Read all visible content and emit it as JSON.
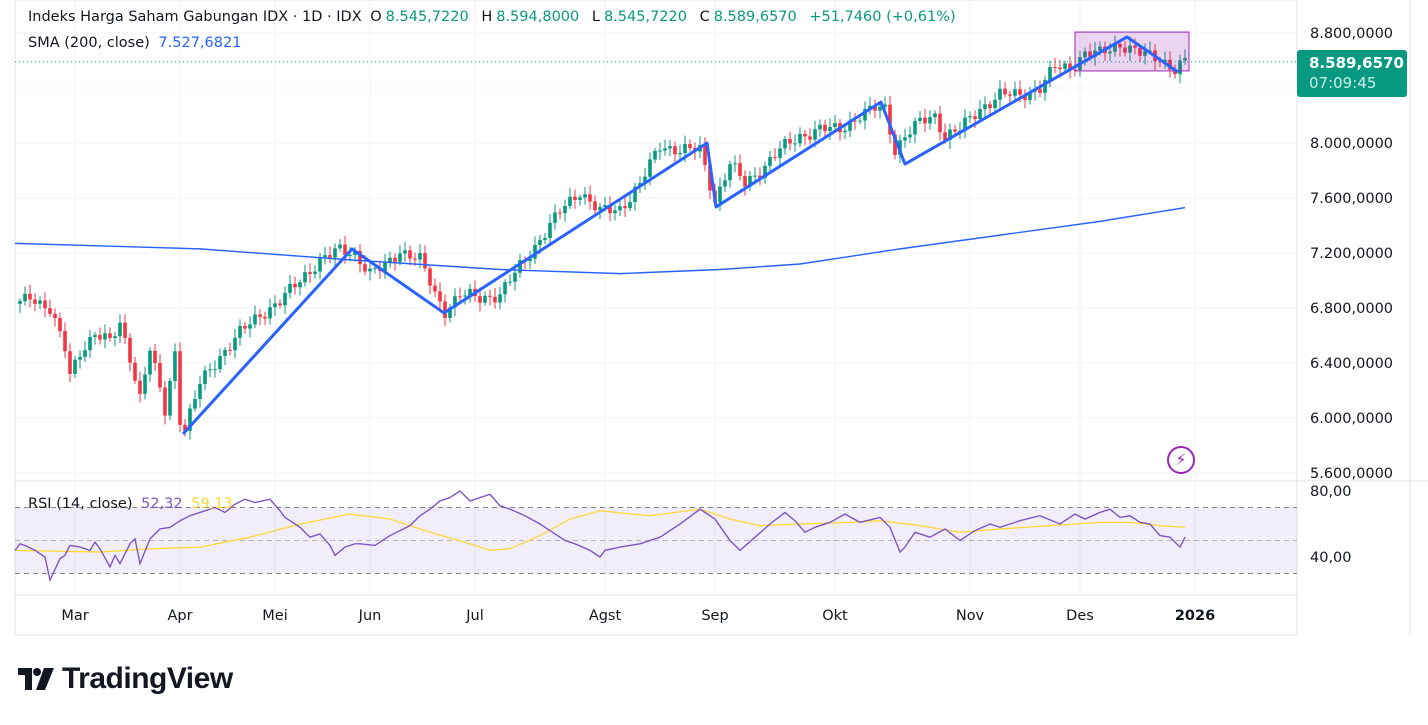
{
  "header": {
    "symbol": "Indeks Harga Saham Gabungan IDX · 1D · IDX",
    "o_label": "O",
    "o": "8.545,7220",
    "h_label": "H",
    "h": "8.594,8000",
    "l_label": "L",
    "l": "8.545,7220",
    "c_label": "C",
    "c": "8.589,6570",
    "change": "+51,7460 (+0,61%)",
    "sma_label": "SMA (200, close)",
    "sma_value": "7.527,6821",
    "rsi_label": "RSI (14, close)",
    "rsi_value": "52,32",
    "rsi_ma_value": "59,13"
  },
  "price_tag": {
    "price": "8.589,6570",
    "countdown": "07:09:45"
  },
  "logo": "TradingView",
  "colors": {
    "up": "#089981",
    "down": "#f23645",
    "sma": "#2962ff",
    "pattern": "#2962ff",
    "rsi": "#7e57c2",
    "rsi_ma": "#fdd835",
    "box": "#9c27b0"
  },
  "chart_data": {
    "type": "candlestick",
    "title": "Indeks Harga Saham Gabungan IDX · 1D · IDX",
    "price_axis": {
      "ylim": [
        5500,
        8900
      ],
      "ticks": [
        8800,
        8000,
        7600,
        7200,
        6800,
        6400,
        6000,
        5600
      ],
      "tick_labels": [
        "8.800,0000",
        "8.000,0000",
        "7.600,0000",
        "7.200,0000",
        "6.800,0000",
        "6.400,0000",
        "6.000,0000",
        "5.600,0000"
      ]
    },
    "rsi_axis": {
      "ylim": [
        20,
        85
      ],
      "ticks": [
        80,
        40
      ],
      "tick_labels": [
        "80,00",
        "40,00"
      ],
      "bands": [
        70,
        50,
        30
      ]
    },
    "time_axis": {
      "labels": [
        "Mar",
        "Apr",
        "Mei",
        "Jun",
        "Jul",
        "Agst",
        "Sep",
        "Okt",
        "Nov",
        "Des",
        "2026"
      ],
      "bar_index": [
        11,
        32,
        51,
        70,
        91,
        117,
        139,
        163,
        190,
        212,
        235
      ]
    },
    "last_price": 8589.657,
    "close_keypoints": [
      [
        0,
        6830
      ],
      [
        2,
        6880
      ],
      [
        6,
        6800
      ],
      [
        9,
        6500
      ],
      [
        10,
        6300
      ],
      [
        12,
        6480
      ],
      [
        15,
        6620
      ],
      [
        18,
        6550
      ],
      [
        20,
        6680
      ],
      [
        22,
        6450
      ],
      [
        24,
        6150
      ],
      [
        26,
        6500
      ],
      [
        28,
        6200
      ],
      [
        29,
        6050
      ],
      [
        31,
        6480
      ],
      [
        32,
        6000
      ],
      [
        33,
        5920
      ],
      [
        36,
        6250
      ],
      [
        40,
        6450
      ],
      [
        44,
        6620
      ],
      [
        48,
        6750
      ],
      [
        52,
        6850
      ],
      [
        56,
        7000
      ],
      [
        60,
        7150
      ],
      [
        64,
        7220
      ],
      [
        67,
        7200
      ],
      [
        70,
        7050
      ],
      [
        73,
        7100
      ],
      [
        76,
        7220
      ],
      [
        80,
        7150
      ],
      [
        83,
        6900
      ],
      [
        85,
        6780
      ],
      [
        88,
        6900
      ],
      [
        92,
        6870
      ],
      [
        96,
        6900
      ],
      [
        100,
        7100
      ],
      [
        104,
        7300
      ],
      [
        108,
        7500
      ],
      [
        112,
        7650
      ],
      [
        116,
        7500
      ],
      [
        120,
        7520
      ],
      [
        124,
        7700
      ],
      [
        128,
        7980
      ],
      [
        132,
        7950
      ],
      [
        136,
        7950
      ],
      [
        139,
        7580
      ],
      [
        142,
        7850
      ],
      [
        145,
        7700
      ],
      [
        148,
        7800
      ],
      [
        152,
        7950
      ],
      [
        156,
        8050
      ],
      [
        160,
        8100
      ],
      [
        164,
        8100
      ],
      [
        168,
        8200
      ],
      [
        171,
        8250
      ],
      [
        173,
        8250
      ],
      [
        175,
        7950
      ],
      [
        177,
        8050
      ],
      [
        180,
        8150
      ],
      [
        183,
        8200
      ],
      [
        185,
        8050
      ],
      [
        188,
        8100
      ],
      [
        192,
        8250
      ],
      [
        196,
        8350
      ],
      [
        200,
        8350
      ],
      [
        204,
        8400
      ],
      [
        207,
        8550
      ],
      [
        210,
        8550
      ],
      [
        213,
        8650
      ],
      [
        216,
        8650
      ],
      [
        220,
        8720
      ],
      [
        224,
        8650
      ],
      [
        228,
        8620
      ],
      [
        231,
        8530
      ],
      [
        233,
        8590
      ]
    ],
    "sma200": [
      [
        -1,
        7270
      ],
      [
        36,
        7230
      ],
      [
        66,
        7150
      ],
      [
        96,
        7080
      ],
      [
        120,
        7050
      ],
      [
        140,
        7080
      ],
      [
        156,
        7120
      ],
      [
        176,
        7230
      ],
      [
        196,
        7330
      ],
      [
        216,
        7430
      ],
      [
        233,
        7530
      ]
    ],
    "pattern_points": [
      [
        32.6,
        5884
      ],
      [
        66.4,
        7229
      ],
      [
        84.8,
        6764
      ],
      [
        137.4,
        8000
      ],
      [
        139.2,
        7535
      ],
      [
        172.2,
        8298
      ],
      [
        177,
        7847
      ],
      [
        221.4,
        8771
      ],
      [
        231.6,
        8516
      ]
    ],
    "box": {
      "from_bar": 211,
      "to_bar": 233.8,
      "top": 8807,
      "bottom": 8524
    },
    "rsi": [
      [
        -1,
        44
      ],
      [
        0,
        48
      ],
      [
        1,
        47
      ],
      [
        3,
        44
      ],
      [
        5,
        40
      ],
      [
        6,
        26
      ],
      [
        8,
        39
      ],
      [
        9,
        41
      ],
      [
        10,
        47
      ],
      [
        12,
        46
      ],
      [
        14,
        44
      ],
      [
        15,
        49
      ],
      [
        16,
        45
      ],
      [
        18,
        34
      ],
      [
        19,
        41
      ],
      [
        20,
        36
      ],
      [
        22,
        48
      ],
      [
        23,
        51
      ],
      [
        24,
        36
      ],
      [
        26,
        51
      ],
      [
        28,
        57
      ],
      [
        30,
        58
      ],
      [
        32,
        62
      ],
      [
        34,
        65
      ],
      [
        36,
        67
      ],
      [
        39,
        70
      ],
      [
        41,
        67
      ],
      [
        43,
        72
      ],
      [
        45,
        75
      ],
      [
        47,
        73
      ],
      [
        50,
        75
      ],
      [
        52,
        68
      ],
      [
        53,
        64
      ],
      [
        56,
        58
      ],
      [
        58,
        52
      ],
      [
        60,
        54
      ],
      [
        62,
        47
      ],
      [
        63,
        41
      ],
      [
        65,
        46
      ],
      [
        67,
        48
      ],
      [
        68,
        48
      ],
      [
        71,
        47
      ],
      [
        74,
        53
      ],
      [
        76,
        56
      ],
      [
        78,
        59
      ],
      [
        80,
        65
      ],
      [
        82,
        69
      ],
      [
        84,
        74
      ],
      [
        86,
        76
      ],
      [
        88,
        80
      ],
      [
        90,
        74
      ],
      [
        92,
        76
      ],
      [
        94,
        78
      ],
      [
        96,
        71
      ],
      [
        98,
        69
      ],
      [
        101,
        65
      ],
      [
        104,
        60
      ],
      [
        107,
        54
      ],
      [
        109,
        50
      ],
      [
        111,
        48
      ],
      [
        114,
        44
      ],
      [
        116,
        40
      ],
      [
        117,
        44
      ],
      [
        120,
        46
      ],
      [
        124,
        48
      ],
      [
        128,
        52
      ],
      [
        132,
        60
      ],
      [
        136,
        69
      ],
      [
        139,
        63
      ],
      [
        142,
        50
      ],
      [
        144,
        44
      ],
      [
        147,
        52
      ],
      [
        150,
        60
      ],
      [
        153,
        67
      ],
      [
        155,
        62
      ],
      [
        157,
        55
      ],
      [
        159,
        58
      ],
      [
        162,
        61
      ],
      [
        165,
        66
      ],
      [
        168,
        61
      ],
      [
        172,
        64
      ],
      [
        174,
        58
      ],
      [
        176,
        43
      ],
      [
        177,
        46
      ],
      [
        179,
        55
      ],
      [
        182,
        52
      ],
      [
        185,
        57
      ],
      [
        188,
        50
      ],
      [
        191,
        56
      ],
      [
        194,
        60
      ],
      [
        196,
        58
      ],
      [
        200,
        62
      ],
      [
        204,
        65
      ],
      [
        208,
        60
      ],
      [
        211,
        66
      ],
      [
        213,
        63
      ],
      [
        216,
        67
      ],
      [
        218,
        69
      ],
      [
        220,
        64
      ],
      [
        222,
        65
      ],
      [
        224,
        61
      ],
      [
        226,
        60
      ],
      [
        228,
        53
      ],
      [
        230,
        52
      ],
      [
        232,
        46
      ],
      [
        233,
        52
      ]
    ],
    "rsi_ma": [
      [
        -1,
        44
      ],
      [
        16,
        43
      ],
      [
        26,
        45
      ],
      [
        36,
        46
      ],
      [
        46,
        52
      ],
      [
        56,
        60
      ],
      [
        66,
        66
      ],
      [
        74,
        63
      ],
      [
        82,
        55
      ],
      [
        90,
        48
      ],
      [
        94,
        44
      ],
      [
        98,
        45
      ],
      [
        104,
        53
      ],
      [
        110,
        63
      ],
      [
        116,
        68
      ],
      [
        126,
        65
      ],
      [
        136,
        69
      ],
      [
        142,
        63
      ],
      [
        148,
        59
      ],
      [
        156,
        60
      ],
      [
        166,
        61
      ],
      [
        172,
        62
      ],
      [
        180,
        59
      ],
      [
        188,
        55
      ],
      [
        196,
        57
      ],
      [
        206,
        59
      ],
      [
        216,
        61
      ],
      [
        222,
        61
      ],
      [
        228,
        59
      ],
      [
        233,
        58
      ]
    ]
  }
}
